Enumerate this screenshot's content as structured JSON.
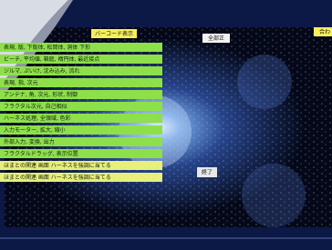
{
  "toolbar": {
    "barcode_button": "バーコード表示",
    "all_button": "全部正",
    "right_button": "合わ"
  },
  "menu": {
    "rows": [
      "表現, 版, 下版体, 松岡体, 洞体 下形",
      "ビーチ, 平均値, 箱庭, 楕円体, 最近接点",
      "ジルマ, ぷいけ, 沈み込み, 流れ",
      "表現, 指, 次元",
      "アンテナ, 角, 次元, 形状, 制御",
      "フラクタル次元, 自己相似",
      "ハーネス処理, 全領域, 色彩",
      "入力モーター, 拡大, 縮小",
      "外部入力, 変換, 出力",
      "フラクタルドラッグ, 表示位置",
      "ほまとの関連 画面 ハーネスを強調に当てる",
      "ほまとの関連 画面 ハーネスを強調に当てる"
    ]
  },
  "exit_button": "終了"
}
